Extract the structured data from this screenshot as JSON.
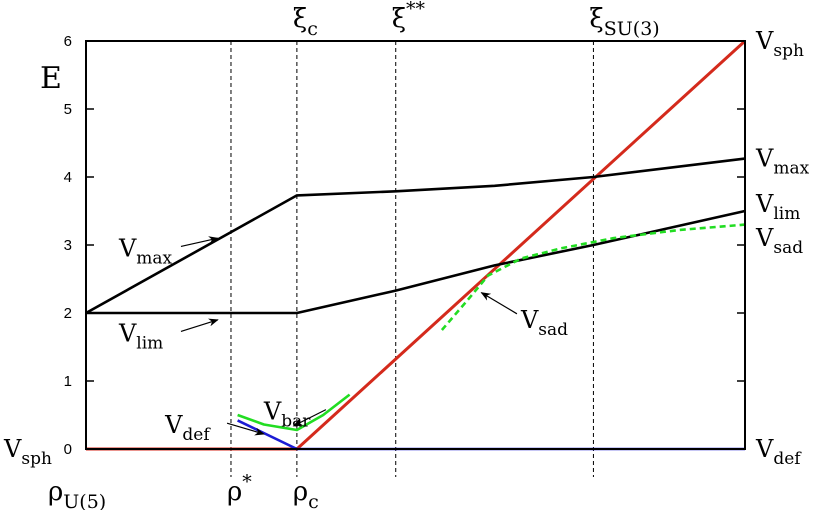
{
  "chart_data": {
    "type": "line",
    "title": "",
    "ylabel": "E",
    "ylim": [
      0,
      6
    ],
    "xlim": [
      0,
      1
    ],
    "y_ticks": [
      "0",
      "1",
      "2",
      "3",
      "4",
      "5",
      "6"
    ],
    "grid": false,
    "vlines": [
      {
        "x": 0.22,
        "bottom_label": {
          "base": "ρ",
          "sup": "*"
        }
      },
      {
        "x": 0.32,
        "top_label": {
          "base": "ξ",
          "sub": "c"
        },
        "bottom_label": {
          "base": "ρ",
          "sub": "c"
        }
      },
      {
        "x": 0.47,
        "top_label": {
          "base": "ξ",
          "sup": "**"
        }
      },
      {
        "x": 0.77,
        "top_label": {
          "base": "ξ",
          "sub": "SU(3)"
        }
      }
    ],
    "x_left_label": {
      "base": "ρ",
      "sub": "U(5)"
    },
    "series": [
      {
        "name": "V_sph",
        "color": "#d42a1c",
        "dash": false,
        "points": [
          [
            0,
            0
          ],
          [
            0.32,
            0
          ],
          [
            1.0,
            6.0
          ]
        ]
      },
      {
        "name": "V_def",
        "color": "#1c1cd4",
        "dash": false,
        "points": [
          [
            0.23,
            0.42
          ],
          [
            0.32,
            0.0
          ],
          [
            1.0,
            0.0
          ]
        ]
      },
      {
        "name": "V_max",
        "color": "#000000",
        "dash": false,
        "points": [
          [
            0,
            2.0
          ],
          [
            0.32,
            3.73
          ],
          [
            0.47,
            3.79
          ],
          [
            0.62,
            3.87
          ],
          [
            0.77,
            4.0
          ],
          [
            1.0,
            4.27
          ]
        ]
      },
      {
        "name": "V_lim",
        "color": "#000000",
        "dash": false,
        "points": [
          [
            0,
            2.0
          ],
          [
            0.32,
            2.0
          ],
          [
            0.47,
            2.33
          ],
          [
            0.62,
            2.7
          ],
          [
            0.77,
            3.0
          ],
          [
            1.0,
            3.5
          ]
        ]
      },
      {
        "name": "V_bar",
        "color": "#22dd22",
        "dash": false,
        "points": [
          [
            0.23,
            0.5
          ],
          [
            0.27,
            0.36
          ],
          [
            0.32,
            0.28
          ],
          [
            0.36,
            0.5
          ],
          [
            0.4,
            0.8
          ]
        ]
      },
      {
        "name": "V_sad",
        "color": "#22dd22",
        "dash": true,
        "points": [
          [
            0.54,
            1.75
          ],
          [
            0.58,
            2.2
          ],
          [
            0.61,
            2.55
          ],
          [
            0.66,
            2.8
          ],
          [
            0.72,
            2.95
          ],
          [
            0.8,
            3.1
          ],
          [
            0.9,
            3.22
          ],
          [
            1.0,
            3.3
          ]
        ]
      }
    ],
    "right_labels": [
      {
        "text": {
          "base": "V",
          "sub": "sph"
        },
        "y": 6.0
      },
      {
        "text": {
          "base": "V",
          "sub": "max"
        },
        "y": 4.27
      },
      {
        "text": {
          "base": "V",
          "sub": "lim"
        },
        "y": 3.6
      },
      {
        "text": {
          "base": "V",
          "sub": "sad"
        },
        "y": 3.1
      },
      {
        "text": {
          "base": "V",
          "sub": "def"
        },
        "y": 0.0
      }
    ],
    "left_labels": [
      {
        "text": {
          "base": "V",
          "sub": "sph"
        },
        "y": 0.0
      }
    ],
    "annotations": [
      {
        "text": {
          "base": "V",
          "sub": "max"
        },
        "at": [
          0.05,
          2.95
        ],
        "arrow_to": [
          0.2,
          3.1
        ]
      },
      {
        "text": {
          "base": "V",
          "sub": "lim"
        },
        "at": [
          0.05,
          1.7
        ],
        "arrow_to": [
          0.2,
          1.9
        ]
      },
      {
        "text": {
          "base": "V",
          "sub": "def"
        },
        "at": [
          0.12,
          0.35
        ],
        "arrow_to": [
          0.27,
          0.22
        ]
      },
      {
        "text": {
          "base": "V",
          "sub": "bar"
        },
        "at": [
          0.27,
          0.55
        ],
        "arrow_to": [
          0.315,
          0.34
        ]
      },
      {
        "text": {
          "base": "V",
          "sub": "sad"
        },
        "at": [
          0.66,
          1.9
        ],
        "arrow_to": [
          0.6,
          2.3
        ]
      }
    ]
  }
}
